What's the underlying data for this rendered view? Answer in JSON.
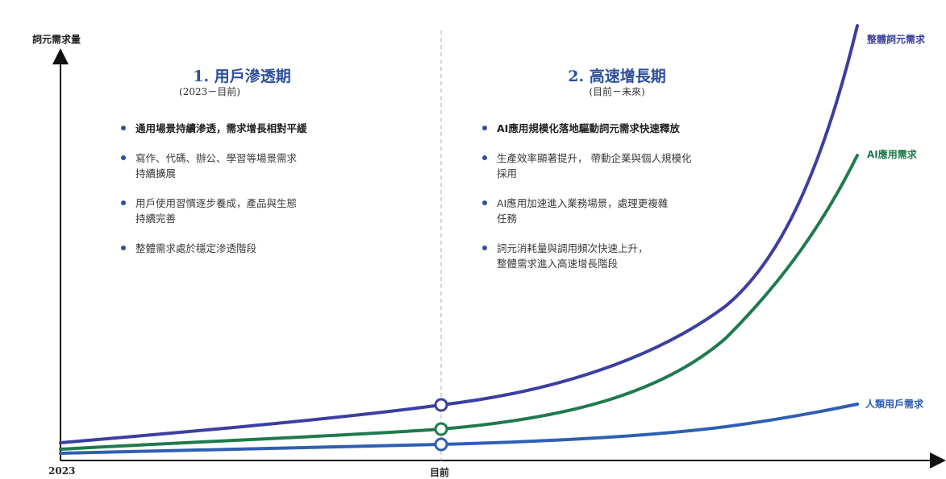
{
  "y_axis_label": "詞元需求量",
  "x_ticks": {
    "start": "2023",
    "now": "目前"
  },
  "phases": [
    {
      "title": "1. 用戶滲透期",
      "subtitle": "(2023－目前)",
      "bullets": [
        "通用場景持續滲透，需求增長相對平緩",
        "寫作、代碼、辦公、學習等場景需求\n持續擴展",
        "用戶使用習慣逐步養成，產品與生態\n持續完善",
        "整體需求處於穩定滲透階段"
      ]
    },
    {
      "title": "2. 高速增長期",
      "subtitle": "(目前－未來)",
      "bullets": [
        "AI應用規模化落地驅動詞元需求快速釋放",
        "生產效率顯著提升， 帶動企業與個人規模化\n採用",
        "AI應用加速進入業務場景，處理更複雜\n任務",
        "詞元消耗量與調用頻次快速上升，\n整體需求進入高速增長階段"
      ]
    }
  ],
  "series": [
    {
      "name": "整體詞元需求",
      "color": "#3b3fa0"
    },
    {
      "name": "AI應用需求",
      "color": "#1f7a4d"
    },
    {
      "name": "人類用戶需求",
      "color": "#2f5fb3"
    }
  ],
  "colors": {
    "axis": "#111111",
    "phase_title": "#2d4f9e",
    "divider": "#bbbbbb"
  }
}
